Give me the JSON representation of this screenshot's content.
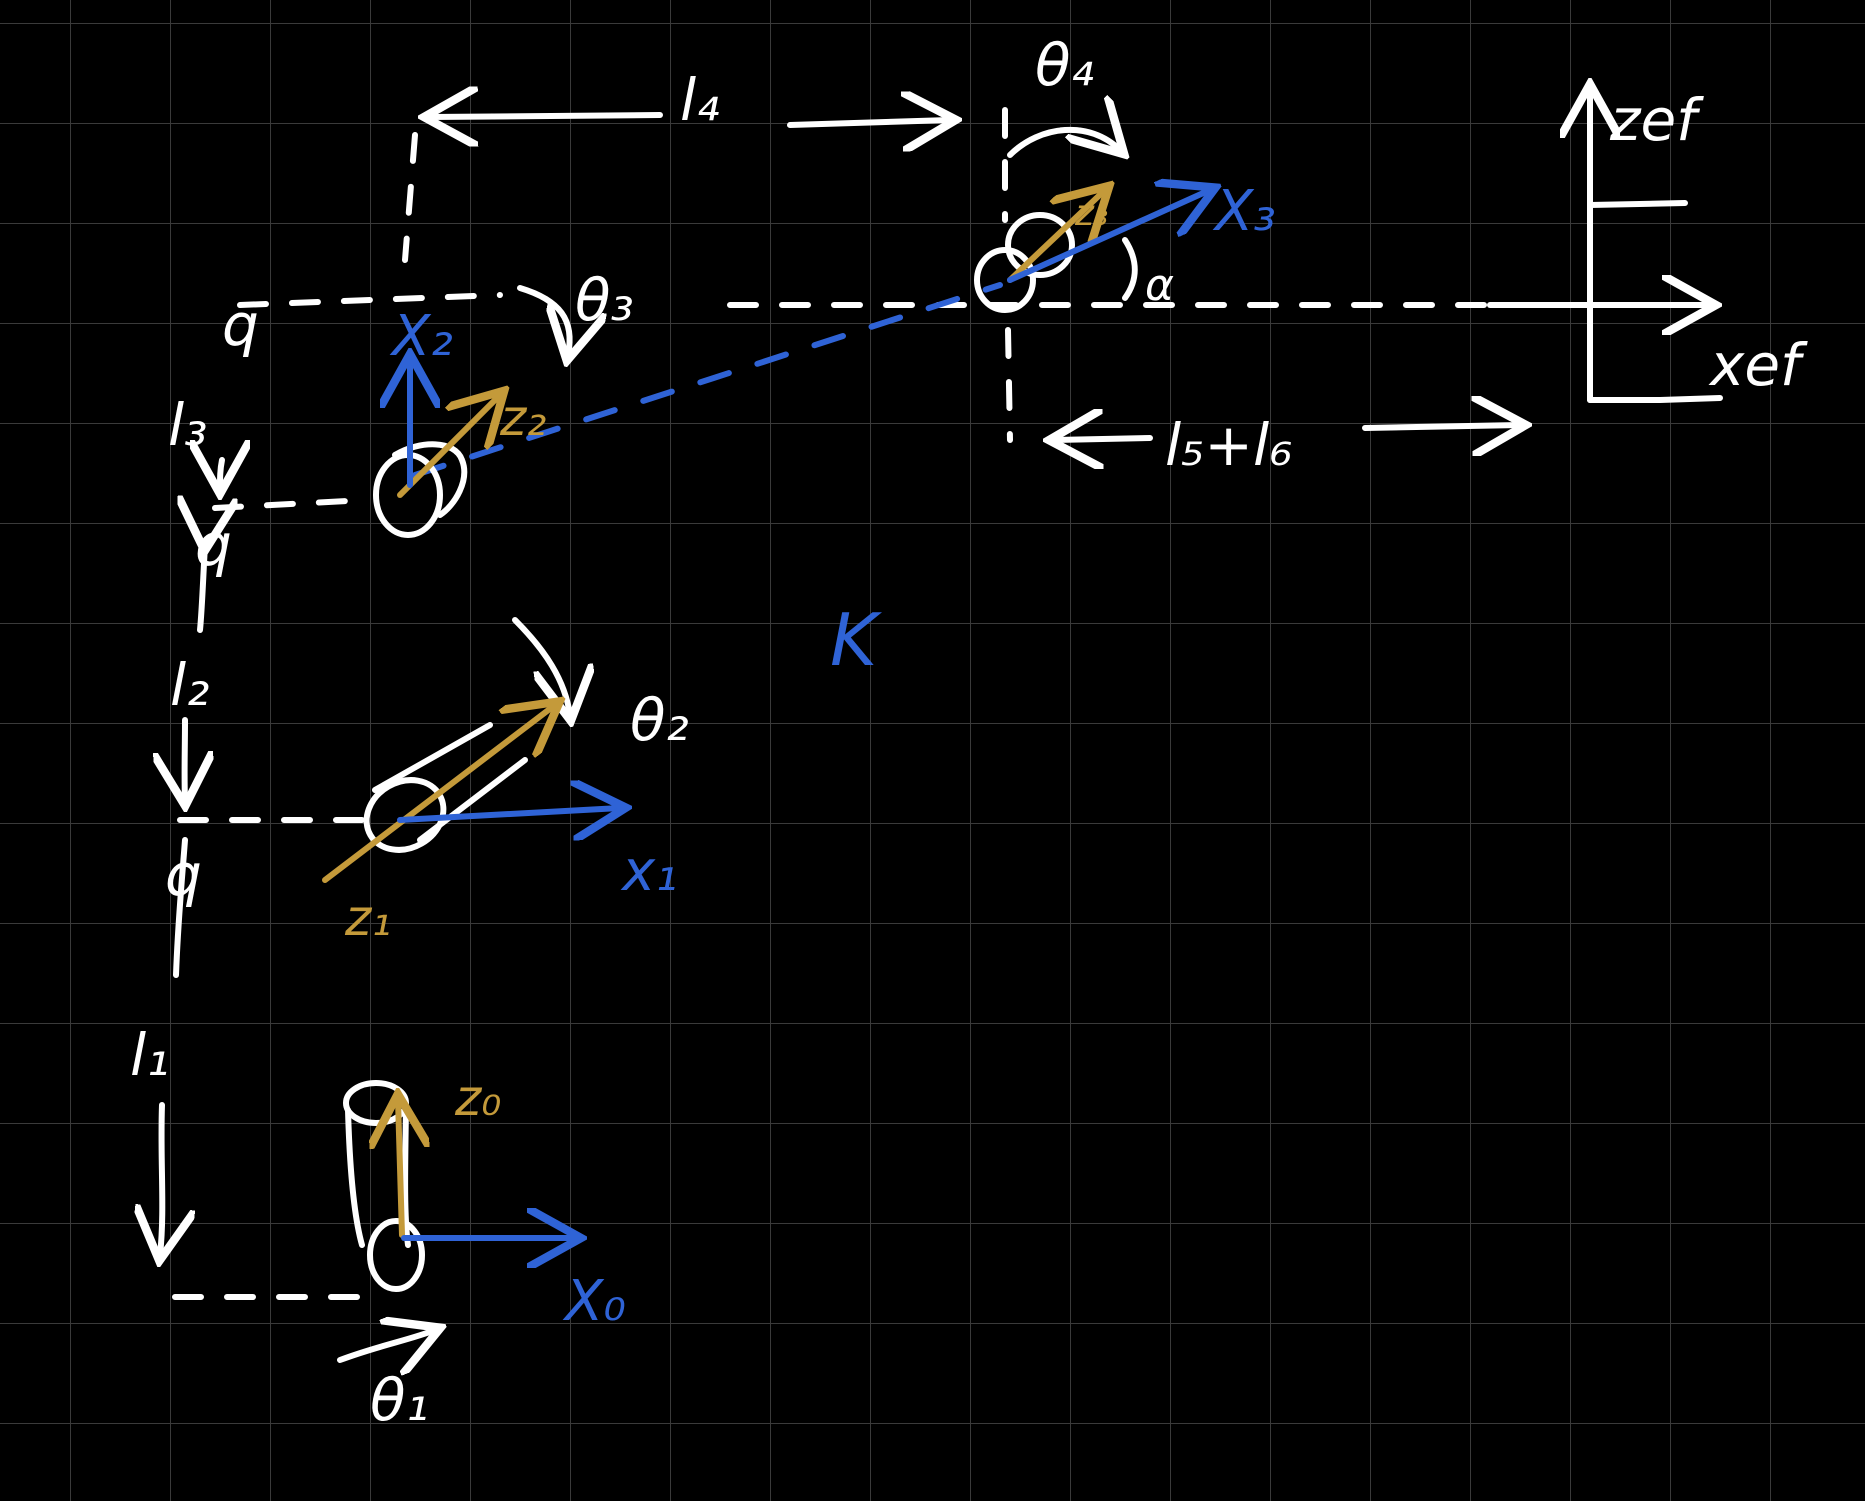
{
  "links": {
    "l1": "l₁",
    "l2": "l₂",
    "l3": "l₃",
    "l4": "l₄",
    "l5l6": "l₅+l₆"
  },
  "angles": {
    "theta1": "θ₁",
    "theta2": "θ₂",
    "theta3": "θ₃",
    "theta4": "θ₄",
    "alpha": "α"
  },
  "frames": {
    "x0": "X₀",
    "z0": "z₀",
    "x1": "x₁",
    "z1": "z₁",
    "x2": "X₂",
    "z2": "z₂",
    "x3": "X₃",
    "z3": "z₃",
    "xef": "xef",
    "zef": "zef"
  },
  "marks": {
    "q_top": "q",
    "q_mid": "q",
    "q_low": "q",
    "k": "K"
  },
  "colors": {
    "ink": "#ffffff",
    "x_axis": "#2f63d6",
    "z_axis": "#c49a3a",
    "background": "#000000",
    "grid": "#3a3a3a"
  }
}
